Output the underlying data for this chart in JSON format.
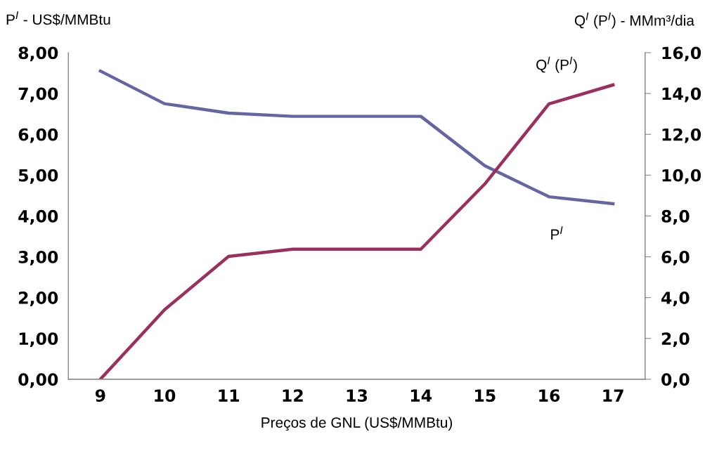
{
  "chart_data": {
    "type": "line",
    "xlabel": "Preços de GNL (US$/MMBtu)",
    "ylabel": "P$^{I}$ - US$/MMBtu",
    "y2label": "Q$^{I}$ (P$^{I}$) - MMm³/dia",
    "categories": [
      "9",
      "10",
      "11",
      "12",
      "13",
      "14",
      "15",
      "16",
      "17"
    ],
    "series": [
      {
        "name": "P$^{I}$",
        "color": "#6466a4",
        "values": [
          7.55,
          6.75,
          6.52,
          6.44,
          6.44,
          6.44,
          5.23,
          4.47,
          4.3
        ]
      },
      {
        "name": "Q$^{I}$ (P$^{I}$)",
        "color": "#9b2f5e",
        "axis": "y2",
        "values": [
          0,
          3.4,
          6.02,
          6.37,
          6.37,
          6.37,
          9.57,
          13.49,
          14.42
        ]
      }
    ],
    "ylim": [
      0,
      8
    ],
    "yticks": [
      {
        "value": 0,
        "label": "0,00"
      },
      {
        "value": 1,
        "label": "1,00"
      },
      {
        "value": 2,
        "label": "2,00"
      },
      {
        "value": 3,
        "label": "3,00"
      },
      {
        "value": 4,
        "label": "4,00"
      },
      {
        "value": 5,
        "label": "5,00"
      },
      {
        "value": 6,
        "label": "6,00"
      },
      {
        "value": 7,
        "label": "7,00"
      },
      {
        "value": 8,
        "label": "8,00"
      }
    ],
    "y2lim": [
      0,
      16
    ],
    "y2ticks": [
      {
        "value": 0,
        "label": "0,0"
      },
      {
        "value": 2,
        "label": "2,0"
      },
      {
        "value": 4,
        "label": "4,0"
      },
      {
        "value": 6,
        "label": "6,0"
      },
      {
        "value": 8,
        "label": "8,0"
      },
      {
        "value": 10,
        "label": "10,0"
      },
      {
        "value": 12,
        "label": "12,0"
      },
      {
        "value": 14,
        "label": "14,0"
      },
      {
        "value": 16,
        "label": "16,0"
      }
    ],
    "grid": false,
    "legend": false,
    "marker": "none",
    "line_style": "solid"
  }
}
